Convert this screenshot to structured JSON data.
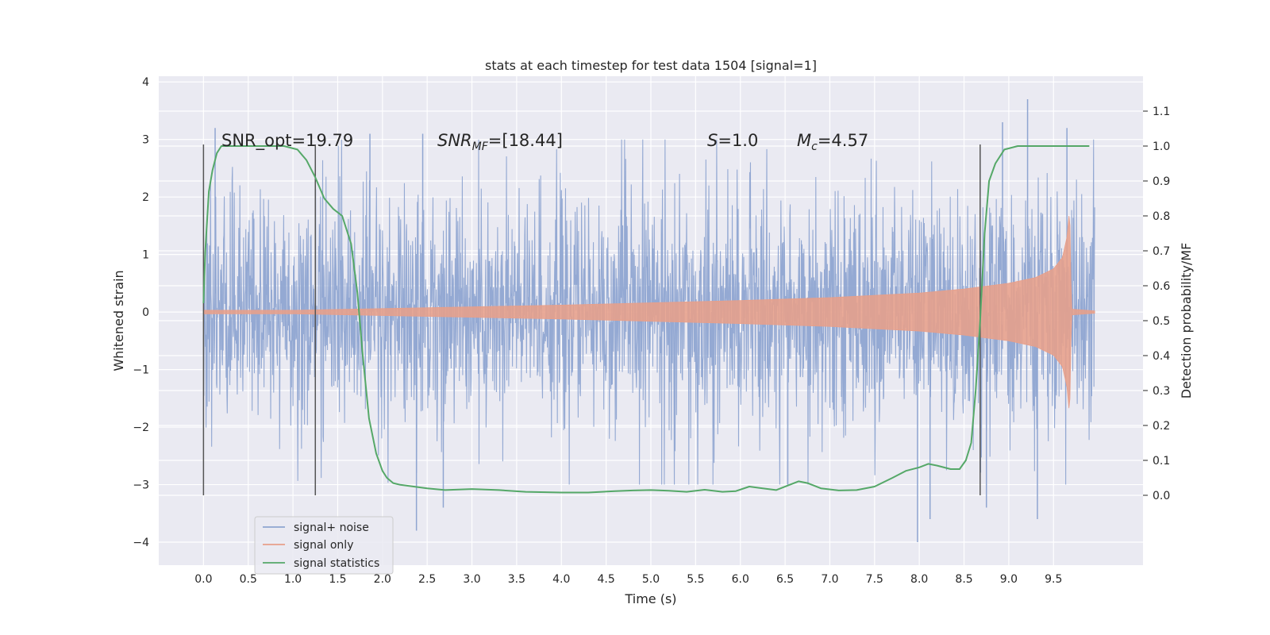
{
  "chart_data": {
    "type": "line",
    "title": "stats at each timestep for test data 1504 [signal=1]",
    "xlabel": "Time (s)",
    "ylabel": "Whitened strain",
    "y2label": "Detection probability/MF",
    "xlim": [
      -0.5,
      10.5
    ],
    "ylim": [
      -4.4,
      4.1
    ],
    "y2lim": [
      -0.2,
      1.2
    ],
    "x_ticks": [
      0.0,
      0.5,
      1.0,
      1.5,
      2.0,
      2.5,
      3.0,
      3.5,
      4.0,
      4.5,
      5.0,
      5.5,
      6.0,
      6.5,
      7.0,
      7.5,
      8.0,
      8.5,
      9.0,
      9.5
    ],
    "x_tick_labels": [
      "0.0",
      "0.5",
      "1.0",
      "1.5",
      "2.0",
      "2.5",
      "3.0",
      "3.5",
      "4.0",
      "4.5",
      "5.0",
      "5.5",
      "6.0",
      "6.5",
      "7.0",
      "7.5",
      "8.0",
      "8.5",
      "9.0",
      "9.5"
    ],
    "y_ticks": [
      -4,
      -3,
      -2,
      -1,
      0,
      1,
      2,
      3,
      4
    ],
    "y_tick_labels": [
      "−4",
      "−3",
      "−2",
      "−1",
      "0",
      "1",
      "2",
      "3",
      "4"
    ],
    "y2_ticks": [
      0.0,
      0.1,
      0.2,
      0.3,
      0.4,
      0.5,
      0.6,
      0.7,
      0.8,
      0.9,
      1.0,
      1.1
    ],
    "y2_tick_labels": [
      "0.0",
      "0.1",
      "0.2",
      "0.3",
      "0.4",
      "0.5",
      "0.6",
      "0.7",
      "0.8",
      "0.9",
      "1.0",
      "1.1"
    ],
    "grid": true,
    "legend_placement": "lower-left",
    "annotations": {
      "snr_opt": "SNR_opt=19.79",
      "snr_mf_main": "SNR",
      "snr_mf_sub": "MF",
      "snr_mf_value": "=[18.44]",
      "s_sym": "S",
      "s_value": "=1.0",
      "mc_main": "M",
      "mc_sub": "c",
      "mc_value": "=4.57"
    },
    "vertical_markers": [
      0.0,
      1.25,
      8.68
    ],
    "series": [
      {
        "name": "signal+ noise",
        "color": "#8fa5d1",
        "time_range": [
          0.0,
          9.96
        ],
        "noise_band_typical": [
          -1.8,
          1.8
        ],
        "peak_values": [
          {
            "x": 0.13,
            "y": 3.2
          },
          {
            "x": 1.86,
            "y": 3.1
          },
          {
            "x": 2.38,
            "y": -3.8
          },
          {
            "x": 2.45,
            "y": 3.1
          },
          {
            "x": 2.68,
            "y": -3.4
          },
          {
            "x": 6.53,
            "y": -3.0
          },
          {
            "x": 7.98,
            "y": -4.0
          },
          {
            "x": 8.12,
            "y": -3.6
          },
          {
            "x": 8.75,
            "y": -3.4
          },
          {
            "x": 8.93,
            "y": 3.3
          },
          {
            "x": 9.21,
            "y": 3.7
          },
          {
            "x": 9.32,
            "y": -3.6
          },
          {
            "x": 9.65,
            "y": 3.2
          }
        ]
      },
      {
        "name": "signal only",
        "color": "#e79f8a",
        "time_range": [
          0.0,
          9.96
        ],
        "envelope_x": [
          0.0,
          1.0,
          2.0,
          3.0,
          4.0,
          5.0,
          6.0,
          7.0,
          8.0,
          8.5,
          9.0,
          9.3,
          9.5,
          9.6,
          9.65,
          9.68,
          9.7,
          9.96
        ],
        "envelope_amp": [
          0.03,
          0.03,
          0.06,
          0.09,
          0.12,
          0.16,
          0.2,
          0.25,
          0.33,
          0.4,
          0.5,
          0.6,
          0.75,
          0.95,
          1.3,
          1.8,
          0.05,
          0.02
        ]
      },
      {
        "name": "signal statistics",
        "color": "#55a868",
        "axis": "right",
        "x": [
          0.0,
          0.02,
          0.06,
          0.1,
          0.15,
          0.2,
          0.3,
          0.5,
          0.7,
          0.9,
          1.05,
          1.15,
          1.25,
          1.35,
          1.45,
          1.55,
          1.65,
          1.72,
          1.78,
          1.85,
          1.93,
          2.0,
          2.05,
          2.12,
          2.2,
          2.35,
          2.5,
          2.7,
          3.0,
          3.3,
          3.6,
          4.0,
          4.3,
          4.6,
          4.8,
          5.0,
          5.2,
          5.4,
          5.6,
          5.8,
          5.95,
          6.1,
          6.25,
          6.4,
          6.55,
          6.65,
          6.75,
          6.9,
          7.1,
          7.3,
          7.5,
          7.7,
          7.85,
          8.0,
          8.1,
          8.2,
          8.35,
          8.45,
          8.52,
          8.58,
          8.63,
          8.68,
          8.73,
          8.78,
          8.85,
          8.95,
          9.1,
          9.3,
          9.6,
          9.9
        ],
        "y": [
          0.55,
          0.7,
          0.87,
          0.93,
          0.98,
          1.0,
          1.0,
          1.0,
          1.0,
          1.0,
          0.99,
          0.96,
          0.91,
          0.85,
          0.82,
          0.8,
          0.72,
          0.58,
          0.4,
          0.22,
          0.12,
          0.07,
          0.05,
          0.035,
          0.03,
          0.025,
          0.02,
          0.015,
          0.018,
          0.015,
          0.01,
          0.008,
          0.008,
          0.012,
          0.014,
          0.015,
          0.013,
          0.01,
          0.016,
          0.01,
          0.012,
          0.025,
          0.02,
          0.015,
          0.03,
          0.04,
          0.035,
          0.02,
          0.014,
          0.015,
          0.025,
          0.05,
          0.07,
          0.08,
          0.09,
          0.085,
          0.075,
          0.075,
          0.1,
          0.15,
          0.3,
          0.5,
          0.75,
          0.9,
          0.95,
          0.99,
          1.0,
          1.0,
          1.0,
          1.0
        ]
      }
    ]
  }
}
